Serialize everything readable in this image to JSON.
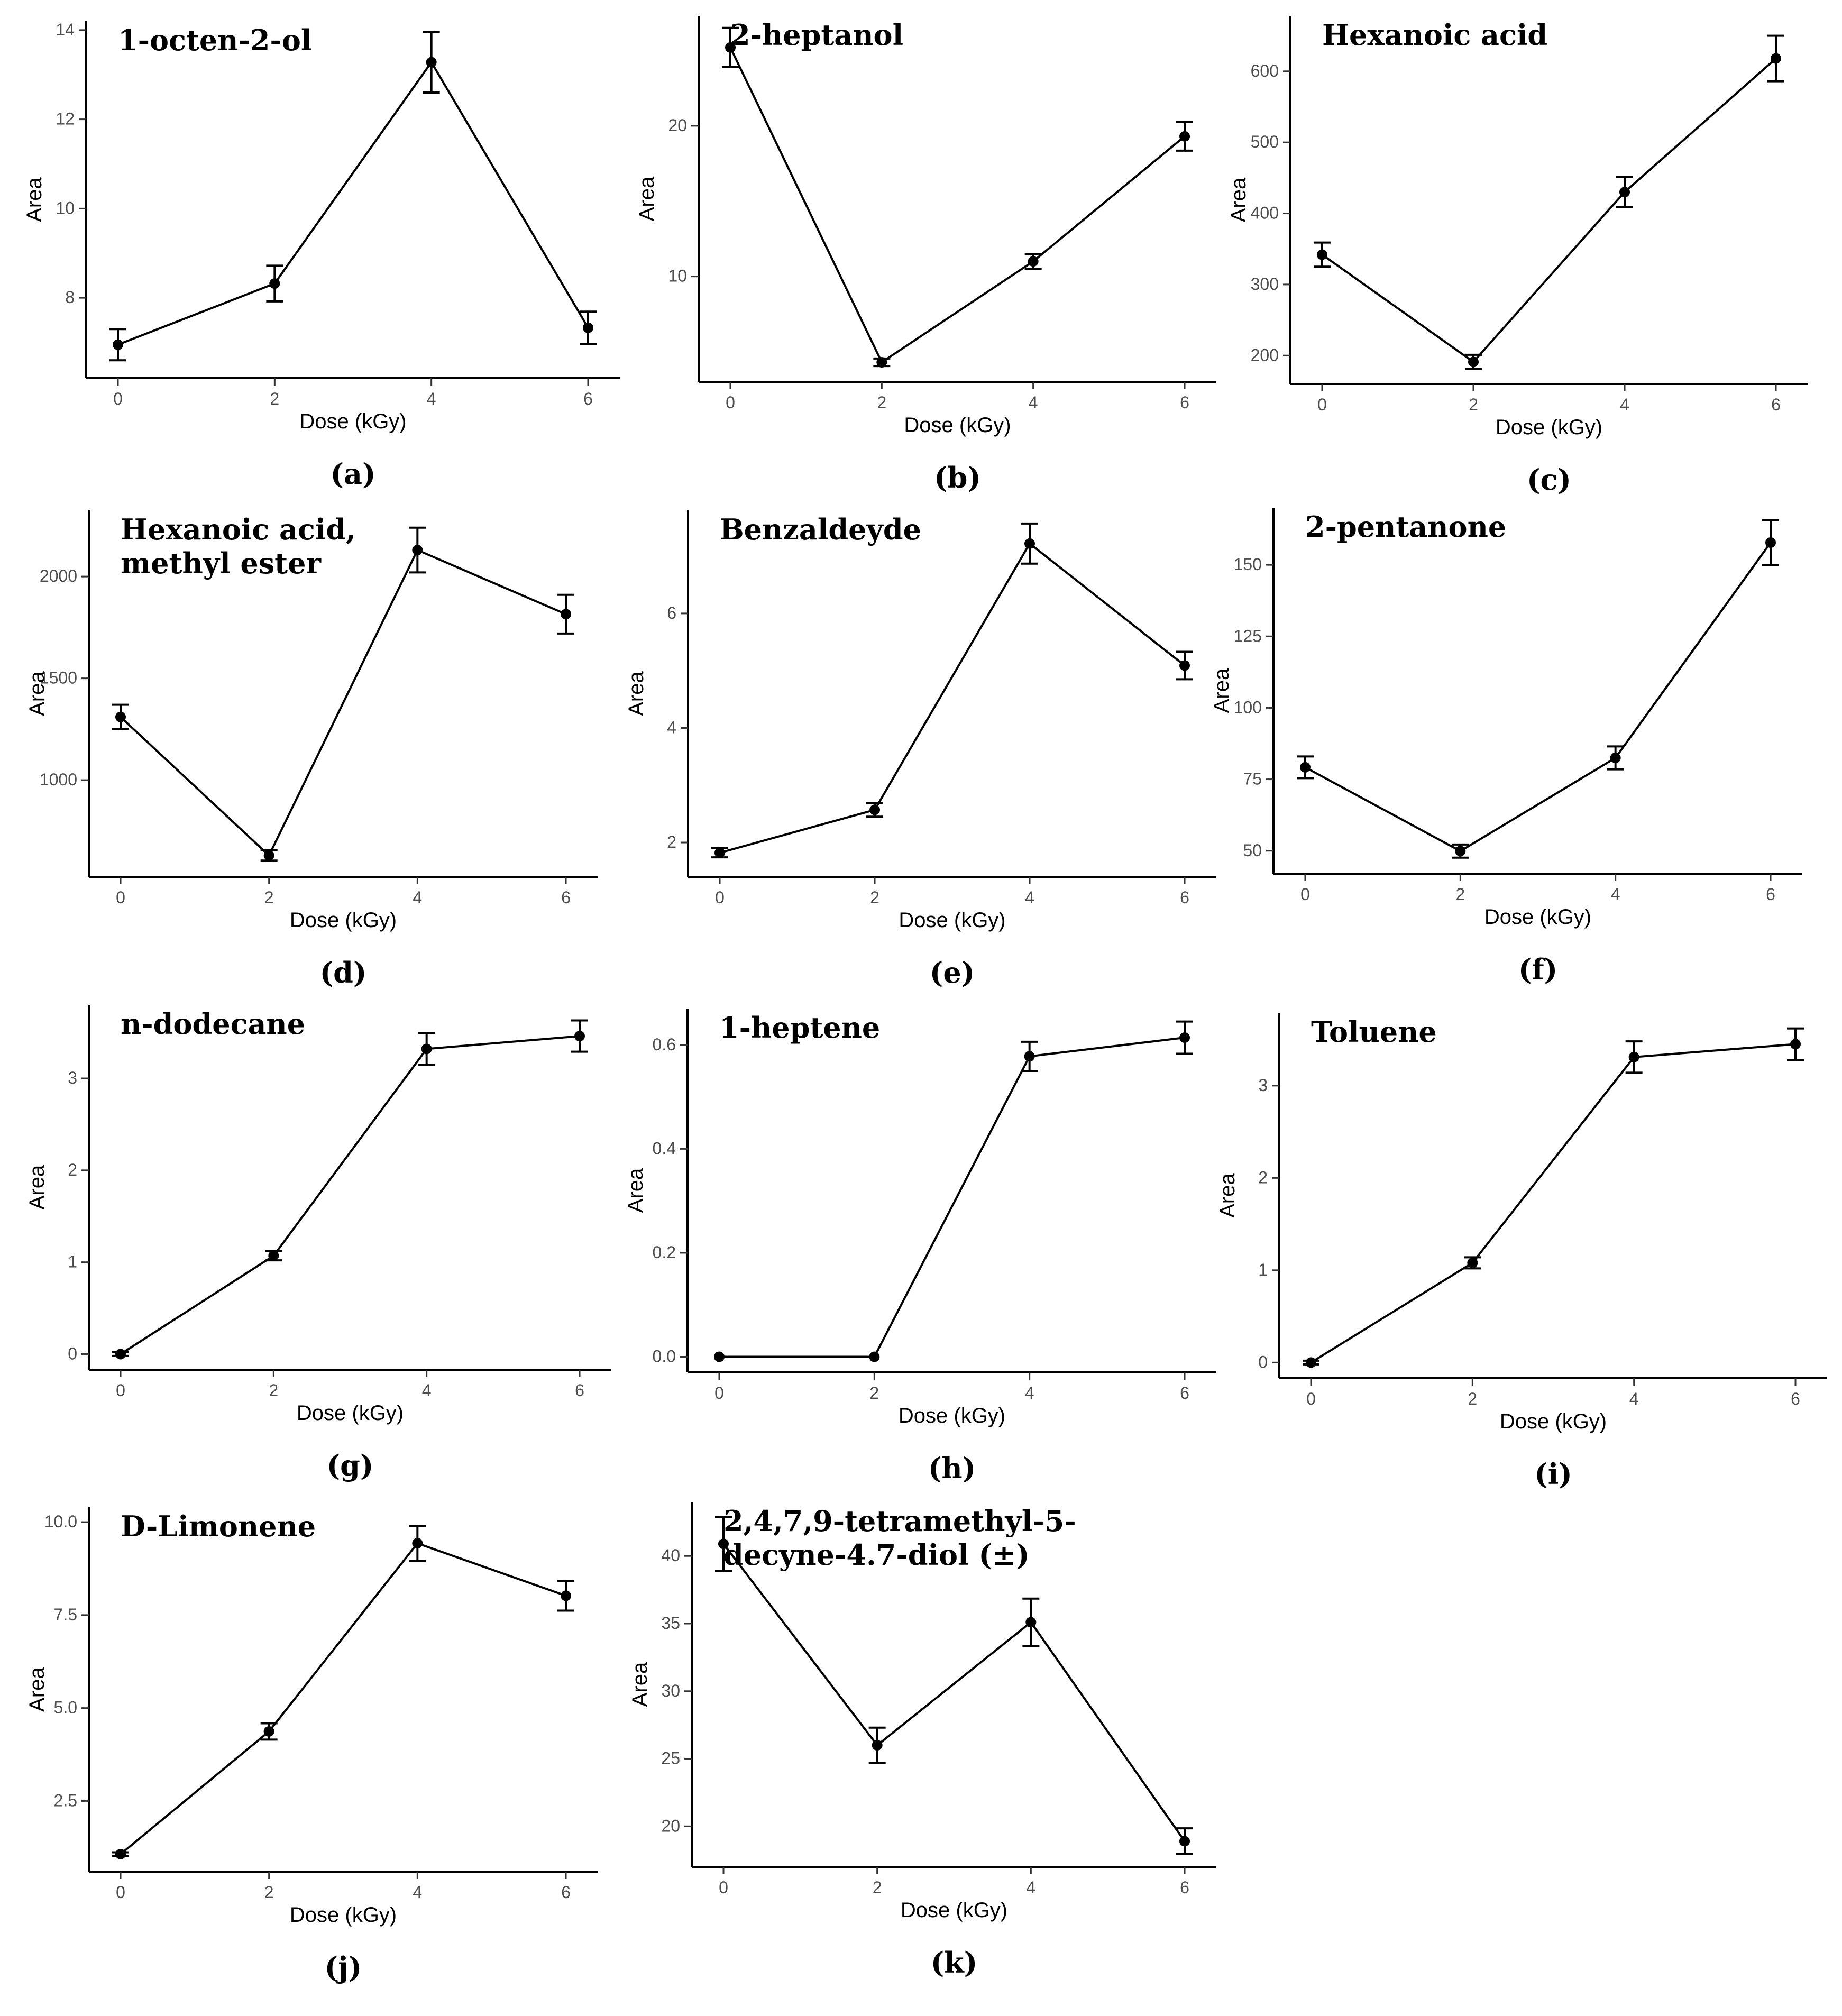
{
  "figure": {
    "x_axis_label": "Dose (kGy)",
    "y_axis_label": "Area"
  },
  "chart_data": [
    {
      "id": "a",
      "type": "line",
      "caption": "(a)",
      "title": [
        "1-octen-2-ol"
      ],
      "xlabel": "Dose (kGy)",
      "ylabel": "Area",
      "x": [
        0,
        2,
        4,
        6
      ],
      "x_ticks": [
        "0",
        "2",
        "4",
        "6"
      ],
      "values": [
        6.95,
        8.32,
        13.28,
        7.33
      ],
      "errors": [
        0.35,
        0.4,
        0.68,
        0.36
      ],
      "ylim": [
        6.2,
        14.2
      ],
      "y_ticks": [
        8,
        10,
        12,
        14
      ],
      "y_tick_labels": [
        "8",
        "10",
        "12",
        "14"
      ]
    },
    {
      "id": "b",
      "type": "line",
      "caption": "(b)",
      "title": [
        "2-heptanol"
      ],
      "xlabel": "Dose (kGy)",
      "ylabel": "Area",
      "x": [
        0,
        2,
        4,
        6
      ],
      "x_ticks": [
        "0",
        "2",
        "4",
        "6"
      ],
      "values": [
        25.2,
        4.3,
        11.0,
        19.3
      ],
      "errors": [
        1.3,
        0.25,
        0.5,
        0.95
      ],
      "ylim": [
        3.0,
        27.3
      ],
      "y_ticks": [
        10,
        20
      ],
      "y_tick_labels": [
        "10",
        "20"
      ]
    },
    {
      "id": "c",
      "type": "line",
      "caption": "(c)",
      "title": [
        "Hexanoic acid"
      ],
      "xlabel": "Dose (kGy)",
      "ylabel": "Area",
      "x": [
        0,
        2,
        4,
        6
      ],
      "x_ticks": [
        "0",
        "2",
        "4",
        "6"
      ],
      "values": [
        342,
        191,
        430,
        618
      ],
      "errors": [
        17,
        10,
        21,
        32
      ],
      "ylim": [
        160,
        678
      ],
      "y_ticks": [
        200,
        300,
        400,
        500,
        600
      ],
      "y_tick_labels": [
        "200",
        "300",
        "400",
        "500",
        "600"
      ]
    },
    {
      "id": "d",
      "type": "line",
      "caption": "(d)",
      "title": [
        "Hexanoic acid,",
        "methyl ester"
      ],
      "xlabel": "Dose (kGy)",
      "ylabel": "Area",
      "x": [
        0,
        2,
        4,
        6
      ],
      "x_ticks": [
        "0",
        "2",
        "4",
        "6"
      ],
      "values": [
        1310,
        630,
        2130,
        1815
      ],
      "errors": [
        60,
        25,
        110,
        95
      ],
      "ylim": [
        525,
        2325
      ],
      "y_ticks": [
        1000,
        1500,
        2000
      ],
      "y_tick_labels": [
        "1000",
        "1500",
        "2000"
      ]
    },
    {
      "id": "e",
      "type": "line",
      "caption": "(e)",
      "title": [
        "Benzaldeyde"
      ],
      "xlabel": "Dose (kGy)",
      "ylabel": "Area",
      "x": [
        0,
        2,
        4,
        6
      ],
      "x_ticks": [
        "0",
        "2",
        "4",
        "6"
      ],
      "values": [
        1.82,
        2.57,
        7.22,
        5.09
      ],
      "errors": [
        0.08,
        0.12,
        0.35,
        0.24
      ],
      "ylim": [
        1.4,
        7.8
      ],
      "y_ticks": [
        2,
        4,
        6
      ],
      "y_tick_labels": [
        "2",
        "4",
        "6"
      ]
    },
    {
      "id": "f",
      "type": "line",
      "caption": "(f)",
      "title": [
        "2-pentanone"
      ],
      "xlabel": "Dose (kGy)",
      "ylabel": "Area",
      "x": [
        0,
        2,
        4,
        6
      ],
      "x_ticks": [
        "0",
        "2",
        "4",
        "6"
      ],
      "values": [
        79.2,
        49.9,
        82.5,
        157.8
      ],
      "errors": [
        3.8,
        2.3,
        4.0,
        7.8
      ],
      "ylim": [
        42,
        170
      ],
      "y_ticks": [
        50,
        75,
        100,
        125,
        150
      ],
      "y_tick_labels": [
        "50",
        "75",
        "100",
        "125",
        "150"
      ]
    },
    {
      "id": "g",
      "type": "line",
      "caption": "(g)",
      "title": [
        "n-dodecane"
      ],
      "xlabel": "Dose (kGy)",
      "ylabel": "Area",
      "x": [
        0,
        2,
        4,
        6
      ],
      "x_ticks": [
        "0",
        "2",
        "4",
        "6"
      ],
      "values": [
        0.0,
        1.07,
        3.32,
        3.46
      ],
      "errors": [
        0.02,
        0.05,
        0.17,
        0.17
      ],
      "ylim": [
        -0.17,
        3.8
      ],
      "y_ticks": [
        0,
        1,
        2,
        3
      ],
      "y_tick_labels": [
        "0",
        "1",
        "2",
        "3"
      ]
    },
    {
      "id": "h",
      "type": "line",
      "caption": "(h)",
      "title": [
        "1-heptene"
      ],
      "xlabel": "Dose (kGy)",
      "ylabel": "Area",
      "x": [
        0,
        2,
        4,
        6
      ],
      "x_ticks": [
        "0",
        "2",
        "4",
        "6"
      ],
      "values": [
        0.0,
        0.0,
        0.578,
        0.614
      ],
      "errors": [
        0.0,
        0.0,
        0.028,
        0.031
      ],
      "ylim": [
        -0.03,
        0.67
      ],
      "y_ticks": [
        0.0,
        0.2,
        0.4,
        0.6
      ],
      "y_tick_labels": [
        "0.0",
        "0.2",
        "0.4",
        "0.6"
      ]
    },
    {
      "id": "i",
      "type": "line",
      "caption": "(i)",
      "title": [
        "Toluene"
      ],
      "xlabel": "Dose (kGy)",
      "ylabel": "Area",
      "x": [
        0,
        2,
        4,
        6
      ],
      "x_ticks": [
        "0",
        "2",
        "4",
        "6"
      ],
      "values": [
        0.0,
        1.08,
        3.31,
        3.45
      ],
      "errors": [
        0.02,
        0.06,
        0.17,
        0.17
      ],
      "ylim": [
        -0.17,
        3.79
      ],
      "y_ticks": [
        0,
        1,
        2,
        3
      ],
      "y_tick_labels": [
        "0",
        "1",
        "2",
        "3"
      ]
    },
    {
      "id": "j",
      "type": "line",
      "caption": "(j)",
      "title": [
        "D-Limonene"
      ],
      "xlabel": "Dose (kGy)",
      "ylabel": "Area",
      "x": [
        0,
        2,
        4,
        6
      ],
      "x_ticks": [
        "0",
        "2",
        "4",
        "6"
      ],
      "values": [
        1.07,
        4.37,
        9.43,
        8.02
      ],
      "errors": [
        0.05,
        0.22,
        0.47,
        0.4
      ],
      "ylim": [
        0.6,
        10.4
      ],
      "y_ticks": [
        2.5,
        5.0,
        7.5,
        10.0
      ],
      "y_tick_labels": [
        "2.5",
        "5.0",
        "7.5",
        "10.0"
      ]
    },
    {
      "id": "k",
      "type": "line",
      "caption": "(k)",
      "title": [
        "2,4,7,9-tetramethyl-5-",
        "decyne-4.7-diol (±)"
      ],
      "xlabel": "Dose (kGy)",
      "ylabel": "Area",
      "x": [
        0,
        2,
        4,
        6
      ],
      "x_ticks": [
        "0",
        "2",
        "4",
        "6"
      ],
      "values": [
        40.9,
        26.0,
        35.1,
        18.9
      ],
      "errors": [
        2.0,
        1.3,
        1.75,
        0.95
      ],
      "ylim": [
        17.0,
        44.0
      ],
      "y_ticks": [
        20,
        25,
        30,
        35,
        40
      ],
      "y_tick_labels": [
        "20",
        "25",
        "30",
        "35",
        "40"
      ]
    }
  ]
}
